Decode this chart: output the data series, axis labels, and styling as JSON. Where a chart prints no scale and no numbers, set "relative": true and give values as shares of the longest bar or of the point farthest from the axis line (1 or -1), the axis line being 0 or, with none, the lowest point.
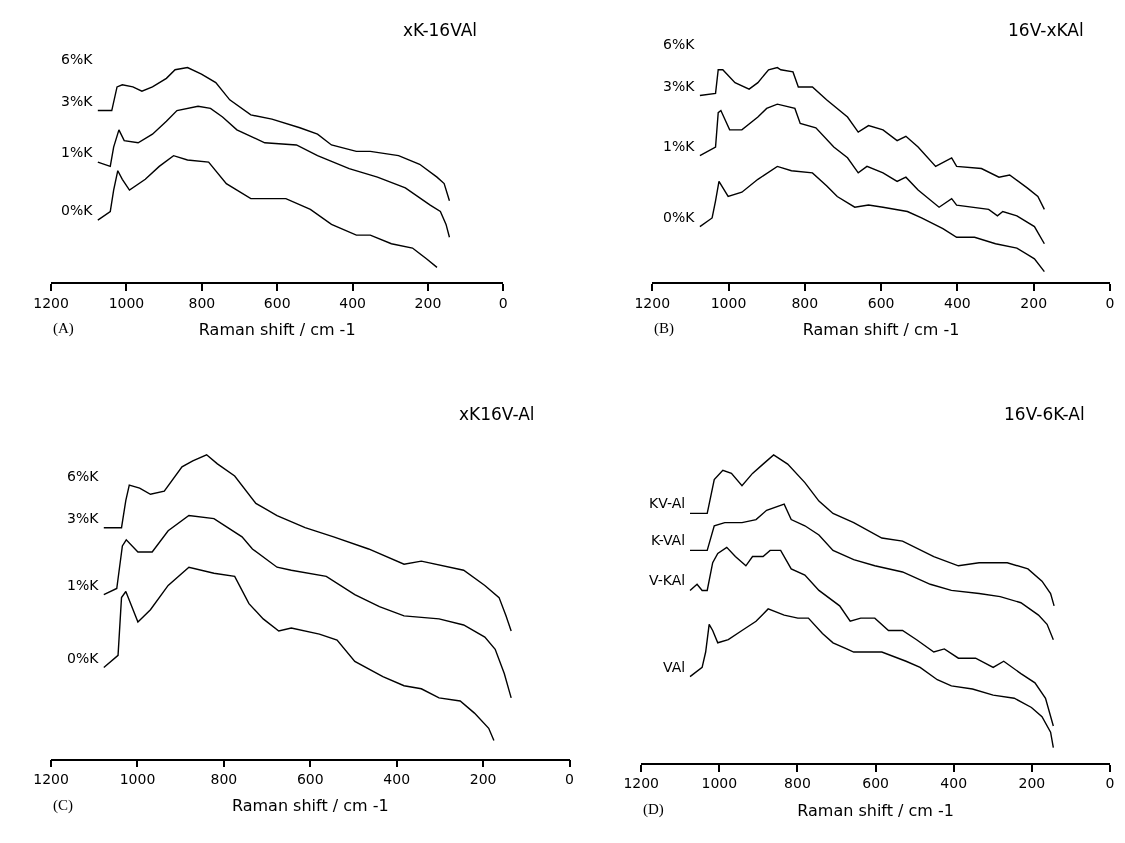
{
  "chart_data": [
    {
      "type": "line",
      "title": "xK-16VAl",
      "xlabel": "Raman shift / cm -1",
      "annotations": [
        "6%K",
        "(A)"
      ],
      "relative": true,
      "xlim": [
        1200,
        0
      ],
      "xticks": [
        1200,
        1000,
        800,
        600,
        400,
        200,
        0
      ],
      "series": [
        {
          "name": "3%K",
          "color": "#000000",
          "x": [
            1076,
            1039,
            1025,
            1011,
            983,
            959,
            931,
            894,
            871,
            838,
            801,
            763,
            726,
            670,
            614,
            540,
            493,
            456,
            390,
            353,
            278,
            222,
            176,
            157,
            143
          ],
          "values": [
            0.8,
            0.8,
            0.91,
            0.92,
            0.91,
            0.89,
            0.91,
            0.95,
            0.99,
            1.0,
            0.97,
            0.93,
            0.85,
            0.78,
            0.76,
            0.72,
            0.69,
            0.64,
            0.61,
            0.61,
            0.59,
            0.55,
            0.49,
            0.46,
            0.38
          ]
        },
        {
          "name": "1%K",
          "color": "#000000",
          "x": [
            1076,
            1043,
            1034,
            1020,
            1006,
            969,
            931,
            894,
            866,
            810,
            777,
            745,
            707,
            633,
            549,
            493,
            409,
            334,
            260,
            194,
            167,
            152,
            143
          ],
          "values": [
            0.56,
            0.54,
            0.63,
            0.71,
            0.66,
            0.65,
            0.69,
            0.75,
            0.8,
            0.82,
            0.81,
            0.77,
            0.71,
            0.65,
            0.64,
            0.59,
            0.53,
            0.49,
            0.44,
            0.36,
            0.33,
            0.27,
            0.21
          ]
        },
        {
          "name": "0%K",
          "color": "#000000",
          "x": [
            1076,
            1043,
            1034,
            1023,
            1011,
            992,
            950,
            913,
            875,
            838,
            782,
            735,
            670,
            577,
            512,
            456,
            390,
            353,
            297,
            241,
            204,
            176
          ],
          "values": [
            0.29,
            0.33,
            0.43,
            0.52,
            0.48,
            0.43,
            0.48,
            0.54,
            0.59,
            0.57,
            0.56,
            0.46,
            0.39,
            0.39,
            0.34,
            0.27,
            0.22,
            0.22,
            0.18,
            0.16,
            0.11,
            0.07
          ]
        }
      ]
    },
    {
      "type": "line",
      "title": "16V-xKAl",
      "xlabel": "Raman shift / cm -1",
      "annotations": [
        "6%K",
        "(B)"
      ],
      "relative": true,
      "xlim": [
        1200,
        0
      ],
      "xticks": [
        1200,
        1000,
        800,
        600,
        400,
        200,
        0
      ],
      "series": [
        {
          "name": "3%K",
          "color": "#000000",
          "x": [
            1075,
            1034,
            1027,
            1015,
            983,
            946,
            923,
            895,
            872,
            863,
            831,
            817,
            780,
            743,
            688,
            660,
            633,
            595,
            558,
            535,
            503,
            457,
            415,
            402,
            337,
            291,
            263,
            217,
            189,
            172
          ],
          "values": [
            0.87,
            0.88,
            0.99,
            0.99,
            0.93,
            0.9,
            0.93,
            0.99,
            1.0,
            0.99,
            0.98,
            0.91,
            0.91,
            0.85,
            0.77,
            0.7,
            0.73,
            0.71,
            0.66,
            0.68,
            0.63,
            0.54,
            0.58,
            0.54,
            0.53,
            0.49,
            0.5,
            0.44,
            0.4,
            0.34
          ]
        },
        {
          "name": "1%K",
          "color": "#000000",
          "x": [
            1075,
            1034,
            1027,
            1020,
            997,
            965,
            923,
            900,
            872,
            826,
            812,
            771,
            724,
            688,
            660,
            637,
            595,
            558,
            535,
            503,
            448,
            415,
            402,
            318,
            295,
            281,
            244,
            198,
            172
          ],
          "values": [
            0.59,
            0.63,
            0.79,
            0.8,
            0.71,
            0.71,
            0.77,
            0.81,
            0.83,
            0.81,
            0.74,
            0.72,
            0.63,
            0.58,
            0.51,
            0.54,
            0.51,
            0.47,
            0.49,
            0.43,
            0.35,
            0.39,
            0.36,
            0.34,
            0.31,
            0.33,
            0.31,
            0.26,
            0.18
          ]
        },
        {
          "name": "0%K",
          "color": "#000000",
          "x": [
            1075,
            1043,
            1034,
            1025,
            1001,
            965,
            923,
            872,
            835,
            780,
            743,
            715,
            669,
            633,
            595,
            531,
            494,
            438,
            402,
            355,
            300,
            244,
            198,
            172
          ],
          "values": [
            0.26,
            0.3,
            0.38,
            0.47,
            0.4,
            0.42,
            0.48,
            0.54,
            0.52,
            0.51,
            0.45,
            0.4,
            0.35,
            0.36,
            0.35,
            0.33,
            0.3,
            0.25,
            0.21,
            0.21,
            0.18,
            0.16,
            0.11,
            0.05
          ]
        }
      ]
    },
    {
      "type": "line",
      "title": "xK16V-Al",
      "xlabel": "Raman shift / cm -1",
      "annotations": [
        "6%K",
        "(C)"
      ],
      "relative": true,
      "xlim": [
        1200,
        0
      ],
      "xticks": [
        1200,
        1000,
        800,
        600,
        400,
        200,
        0
      ],
      "series": [
        {
          "name": "3%K",
          "color": "#000000",
          "x": [
            1078,
            1037,
            1027,
            1019,
            995,
            970,
            938,
            897,
            872,
            840,
            815,
            775,
            726,
            677,
            612,
            546,
            465,
            383,
            343,
            245,
            196,
            163,
            147,
            135
          ],
          "values": [
            0.76,
            0.76,
            0.85,
            0.9,
            0.89,
            0.87,
            0.88,
            0.96,
            0.98,
            1.0,
            0.97,
            0.93,
            0.84,
            0.8,
            0.76,
            0.73,
            0.69,
            0.64,
            0.65,
            0.62,
            0.57,
            0.53,
            0.47,
            0.42
          ]
        },
        {
          "name": "1%K",
          "color": "#000000",
          "x": [
            1078,
            1048,
            1035,
            1026,
            999,
            966,
            929,
            881,
            823,
            791,
            758,
            734,
            677,
            644,
            563,
            497,
            440,
            383,
            302,
            245,
            196,
            172,
            151,
            135
          ],
          "values": [
            0.54,
            0.56,
            0.7,
            0.72,
            0.68,
            0.68,
            0.75,
            0.8,
            0.79,
            0.76,
            0.73,
            0.69,
            0.63,
            0.62,
            0.6,
            0.54,
            0.5,
            0.47,
            0.46,
            0.44,
            0.4,
            0.36,
            0.28,
            0.2
          ]
        },
        {
          "name": "0%K",
          "color": "#000000",
          "x": [
            1078,
            1045,
            1037,
            1027,
            999,
            970,
            929,
            881,
            823,
            775,
            742,
            709,
            673,
            644,
            579,
            538,
            497,
            432,
            383,
            343,
            302,
            253,
            220,
            187,
            175
          ],
          "values": [
            0.3,
            0.34,
            0.53,
            0.55,
            0.45,
            0.49,
            0.57,
            0.63,
            0.61,
            0.6,
            0.51,
            0.46,
            0.42,
            0.43,
            0.41,
            0.39,
            0.32,
            0.27,
            0.24,
            0.23,
            0.2,
            0.19,
            0.15,
            0.1,
            0.06
          ]
        }
      ]
    },
    {
      "type": "line",
      "title": "16V-6K-Al",
      "xlabel": "Raman shift / cm -1",
      "annotations": [
        "(D)"
      ],
      "relative": true,
      "xlim": [
        1200,
        0
      ],
      "xticks": [
        1200,
        1000,
        800,
        600,
        400,
        200,
        0
      ],
      "series": [
        {
          "name": "KV-Al",
          "color": "#000000",
          "x": [
            1075,
            1031,
            1013,
            991,
            969,
            942,
            915,
            888,
            861,
            825,
            781,
            745,
            709,
            656,
            584,
            531,
            451,
            388,
            335,
            263,
            210,
            174,
            152,
            143
          ],
          "values": [
            0.81,
            0.81,
            0.92,
            0.95,
            0.94,
            0.9,
            0.94,
            0.97,
            1.0,
            0.97,
            0.91,
            0.85,
            0.81,
            0.78,
            0.73,
            0.72,
            0.67,
            0.64,
            0.65,
            0.65,
            0.63,
            0.59,
            0.55,
            0.51
          ]
        },
        {
          "name": "K-VAl",
          "color": "#000000",
          "x": [
            1075,
            1031,
            1013,
            986,
            942,
            906,
            879,
            834,
            816,
            781,
            745,
            709,
            656,
            602,
            531,
            460,
            406,
            335,
            281,
            228,
            183,
            161,
            145
          ],
          "values": [
            0.69,
            0.69,
            0.77,
            0.78,
            0.78,
            0.79,
            0.82,
            0.84,
            0.79,
            0.77,
            0.74,
            0.69,
            0.66,
            0.64,
            0.62,
            0.58,
            0.56,
            0.55,
            0.54,
            0.52,
            0.48,
            0.45,
            0.4
          ]
        },
        {
          "name": "V-KAl",
          "color": "#000000",
          "x": [
            1075,
            1057,
            1044,
            1031,
            1017,
            1004,
            981,
            959,
            932,
            915,
            888,
            870,
            843,
            816,
            781,
            745,
            692,
            665,
            638,
            602,
            567,
            531,
            495,
            451,
            424,
            388,
            344,
            299,
            272,
            228,
            192,
            165,
            145
          ],
          "values": [
            0.56,
            0.58,
            0.56,
            0.56,
            0.65,
            0.68,
            0.7,
            0.67,
            0.64,
            0.67,
            0.67,
            0.69,
            0.69,
            0.63,
            0.61,
            0.56,
            0.51,
            0.46,
            0.47,
            0.47,
            0.43,
            0.43,
            0.4,
            0.36,
            0.37,
            0.34,
            0.34,
            0.31,
            0.33,
            0.29,
            0.26,
            0.21,
            0.12
          ]
        },
        {
          "name": "VAl",
          "color": "#000000",
          "x": [
            1075,
            1044,
            1035,
            1026,
            1017,
            1004,
            977,
            942,
            906,
            875,
            834,
            799,
            772,
            736,
            709,
            674,
            656,
            584,
            522,
            486,
            442,
            406,
            352,
            299,
            245,
            201,
            174,
            152,
            145
          ],
          "values": [
            0.28,
            0.31,
            0.36,
            0.45,
            0.43,
            0.39,
            0.4,
            0.43,
            0.46,
            0.5,
            0.48,
            0.47,
            0.47,
            0.42,
            0.39,
            0.37,
            0.36,
            0.36,
            0.33,
            0.31,
            0.27,
            0.25,
            0.24,
            0.22,
            0.21,
            0.18,
            0.15,
            0.1,
            0.05
          ]
        }
      ]
    }
  ]
}
